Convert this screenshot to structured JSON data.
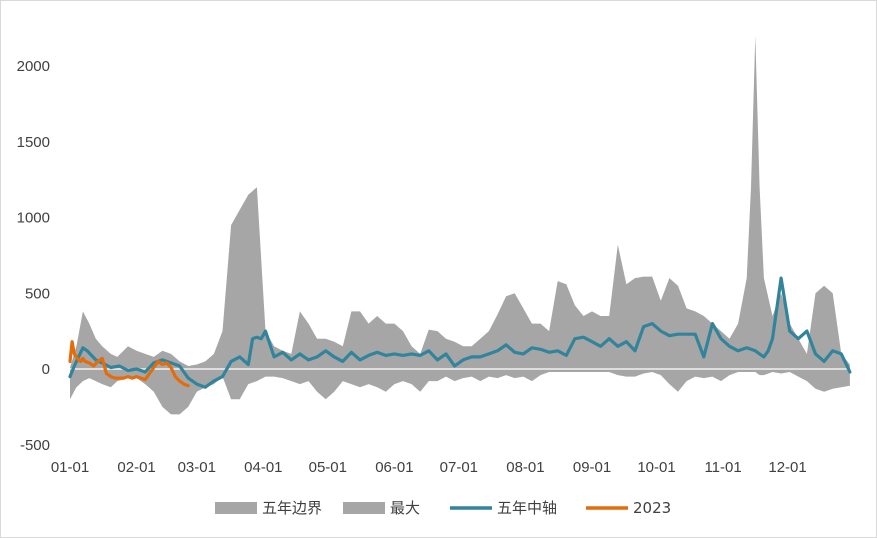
{
  "chart_data": {
    "type": "area",
    "title": "",
    "xlabel": "",
    "ylabel": "",
    "ylim": [
      -500,
      2200
    ],
    "yticks": [
      -500,
      0,
      500,
      1000,
      1500,
      2000
    ],
    "xticks": [
      "01-01",
      "02-01",
      "03-01",
      "04-01",
      "05-01",
      "06-01",
      "07-01",
      "08-01",
      "09-01",
      "10-01",
      "11-01",
      "12-01"
    ],
    "grid": false,
    "legend": "bottom",
    "x_unit": "day of year",
    "series": [
      {
        "name": "五年边界",
        "role": "band",
        "color": "#a6a6a6",
        "x": [
          1,
          4,
          7,
          10,
          13,
          16,
          20,
          23,
          28,
          32,
          36,
          40,
          44,
          48,
          52,
          56,
          60,
          64,
          68,
          72,
          76,
          80,
          84,
          88,
          92,
          96,
          100,
          104,
          108,
          112,
          116,
          120,
          124,
          128,
          132,
          136,
          140,
          144,
          148,
          152,
          156,
          160,
          164,
          168,
          172,
          176,
          180,
          184,
          188,
          192,
          196,
          200,
          204,
          208,
          212,
          216,
          220,
          224,
          228,
          232,
          236,
          240,
          244,
          248,
          252,
          256,
          260,
          264,
          268,
          272,
          276,
          280,
          284,
          288,
          292,
          296,
          300,
          304,
          308,
          312,
          316,
          318,
          320,
          322,
          324,
          328,
          332,
          336,
          340,
          344,
          348,
          352,
          356,
          360,
          364
        ],
        "upper": [
          10,
          150,
          380,
          300,
          200,
          150,
          100,
          80,
          150,
          120,
          100,
          80,
          120,
          100,
          50,
          20,
          30,
          50,
          100,
          250,
          950,
          1050,
          1150,
          1200,
          250,
          150,
          120,
          100,
          380,
          300,
          200,
          200,
          180,
          150,
          380,
          380,
          300,
          350,
          300,
          300,
          250,
          150,
          100,
          260,
          250,
          200,
          180,
          150,
          150,
          200,
          250,
          360,
          480,
          500,
          400,
          300,
          300,
          250,
          580,
          560,
          420,
          350,
          380,
          350,
          350,
          820,
          560,
          600,
          610,
          610,
          450,
          600,
          550,
          400,
          380,
          350,
          300,
          250,
          200,
          300,
          600,
          1200,
          2200,
          1200,
          600,
          350,
          500,
          300,
          200,
          100,
          500,
          550,
          500,
          100,
          30
        ],
        "lower": [
          -200,
          -120,
          -80,
          -60,
          -80,
          -100,
          -120,
          -80,
          -60,
          -60,
          -100,
          -150,
          -250,
          -300,
          -300,
          -250,
          -150,
          -120,
          -100,
          -50,
          -200,
          -200,
          -100,
          -80,
          -50,
          -50,
          -60,
          -80,
          -100,
          -80,
          -150,
          -200,
          -150,
          -80,
          -100,
          -120,
          -100,
          -120,
          -150,
          -100,
          -80,
          -100,
          -150,
          -80,
          -80,
          -50,
          -80,
          -60,
          -50,
          -80,
          -50,
          -60,
          -40,
          -60,
          -50,
          -80,
          -40,
          -20,
          -20,
          -20,
          -20,
          -20,
          -20,
          -20,
          -20,
          -40,
          -50,
          -50,
          -30,
          -20,
          -40,
          -100,
          -150,
          -80,
          -50,
          -60,
          -50,
          -80,
          -40,
          -20,
          -20,
          -20,
          -20,
          -40,
          -40,
          -20,
          -30,
          -20,
          -50,
          -80,
          -130,
          -150,
          -130,
          -120,
          -110
        ]
      },
      {
        "name": "最大",
        "role": "area",
        "color": "#a6a6a6"
      },
      {
        "name": "五年中轴",
        "role": "line",
        "color": "#31849b",
        "x": [
          1,
          3,
          5,
          7,
          9,
          11,
          13,
          16,
          20,
          24,
          28,
          32,
          36,
          40,
          44,
          48,
          52,
          56,
          60,
          64,
          66,
          68,
          72,
          74,
          76,
          80,
          84,
          86,
          88,
          90,
          92,
          96,
          100,
          104,
          108,
          112,
          116,
          120,
          124,
          128,
          132,
          136,
          140,
          144,
          148,
          152,
          156,
          160,
          164,
          168,
          172,
          176,
          180,
          184,
          188,
          192,
          196,
          200,
          204,
          208,
          212,
          216,
          220,
          224,
          228,
          232,
          236,
          240,
          244,
          248,
          252,
          256,
          260,
          264,
          268,
          272,
          276,
          280,
          284,
          288,
          292,
          296,
          300,
          304,
          308,
          312,
          316,
          318,
          320,
          322,
          324,
          326,
          328,
          332,
          336,
          340,
          344,
          348,
          352,
          356,
          360,
          364
        ],
        "values": [
          -50,
          20,
          80,
          140,
          120,
          90,
          60,
          40,
          10,
          20,
          -10,
          0,
          -20,
          40,
          60,
          40,
          20,
          -60,
          -100,
          -120,
          -100,
          -80,
          -50,
          0,
          50,
          80,
          30,
          200,
          210,
          200,
          250,
          80,
          110,
          60,
          100,
          60,
          80,
          120,
          80,
          50,
          110,
          60,
          90,
          110,
          90,
          100,
          90,
          100,
          90,
          120,
          60,
          100,
          20,
          60,
          80,
          80,
          100,
          120,
          160,
          110,
          100,
          140,
          130,
          110,
          120,
          90,
          200,
          210,
          180,
          150,
          200,
          150,
          180,
          120,
          280,
          300,
          250,
          220,
          230,
          230,
          230,
          80,
          300,
          200,
          150,
          120,
          140,
          130,
          120,
          100,
          80,
          120,
          200,
          600,
          250,
          200,
          250,
          100,
          50,
          120,
          100,
          -20
        ]
      },
      {
        "name": "2023",
        "role": "line",
        "color": "#e46c0a",
        "x": [
          1,
          2,
          3,
          4,
          5,
          6,
          7,
          8,
          10,
          12,
          14,
          16,
          18,
          20,
          22,
          24,
          26,
          28,
          30,
          32,
          34,
          36,
          38,
          40,
          42,
          44,
          46,
          48,
          50,
          52,
          54,
          56
        ],
        "values": [
          50,
          180,
          100,
          80,
          60,
          50,
          70,
          50,
          40,
          20,
          50,
          70,
          -30,
          -50,
          -60,
          -60,
          -60,
          -50,
          -60,
          -50,
          -60,
          -70,
          -30,
          10,
          50,
          30,
          40,
          10,
          -50,
          -80,
          -100,
          -110
        ]
      }
    ]
  }
}
